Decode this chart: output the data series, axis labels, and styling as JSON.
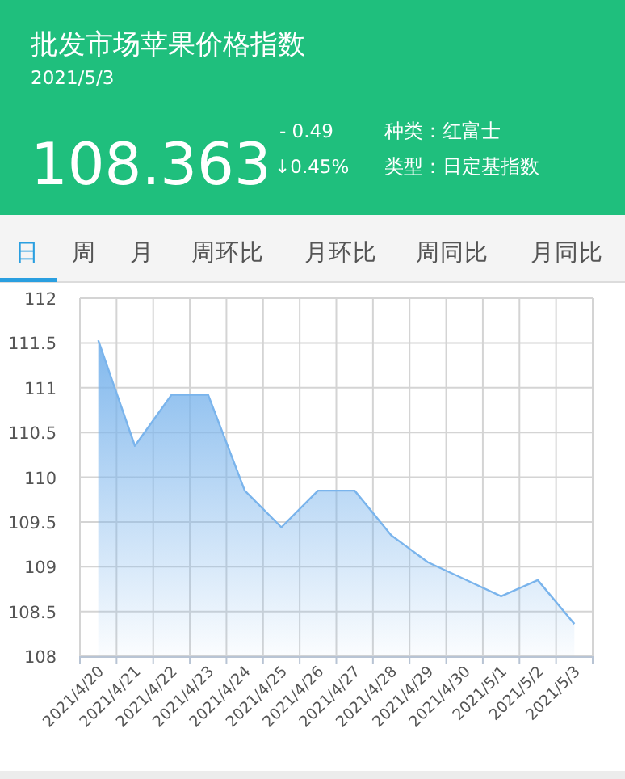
{
  "chart_data": {
    "type": "area",
    "title": "批发市场苹果价格指数",
    "subtitle": "2021/5/3",
    "annotations": [
      "108.363",
      "- 0.49",
      "↓0.45%",
      "种类：红富士",
      "类型：日定基指数",
      "日",
      "周",
      "月",
      "周环比",
      "月环比",
      "周同比",
      "月同比"
    ],
    "categories": [
      "2021/4/20",
      "2021/4/21",
      "2021/4/22",
      "2021/4/23",
      "2021/4/24",
      "2021/4/25",
      "2021/4/26",
      "2021/4/27",
      "2021/4/28",
      "2021/4/29",
      "2021/4/30",
      "2021/5/1",
      "2021/5/2",
      "2021/5/3"
    ],
    "series": [
      {
        "color": "#7ab4ec",
        "values": [
          111.53,
          110.35,
          110.92,
          110.92,
          109.85,
          109.44,
          109.85,
          109.85,
          109.35,
          109.05,
          108.86,
          108.67,
          108.85,
          108.36
        ]
      }
    ],
    "ylim": [
      108,
      112
    ],
    "yticks": [
      108,
      108.5,
      109,
      109.5,
      110,
      110.5,
      111,
      111.5,
      112
    ],
    "grid": true
  }
}
